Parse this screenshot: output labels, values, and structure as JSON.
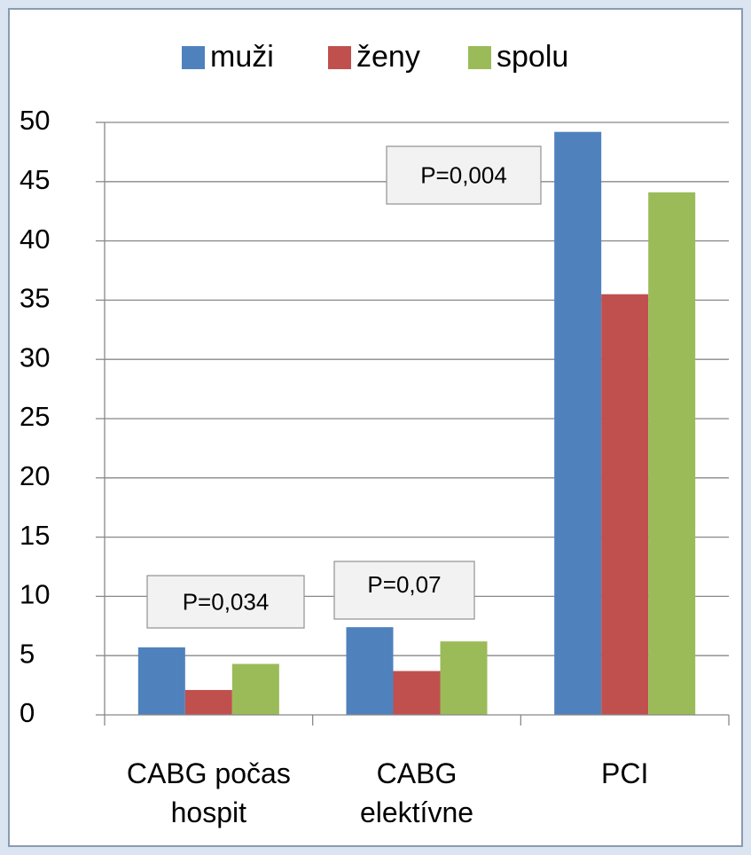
{
  "chart_data": {
    "type": "bar",
    "categories": [
      "CABG počas hospit",
      "CABG elektívne",
      "PCI"
    ],
    "series": [
      {
        "name": "muži",
        "color": "#4f81bd",
        "values": [
          5.7,
          7.4,
          49.2
        ]
      },
      {
        "name": "ženy",
        "color": "#c0504d",
        "values": [
          2.1,
          3.7,
          35.5
        ]
      },
      {
        "name": "spolu",
        "color": "#9bbb59",
        "values": [
          4.3,
          6.2,
          44.1
        ]
      }
    ],
    "ylim": [
      0,
      50
    ],
    "yticks": [
      0,
      5,
      10,
      15,
      20,
      25,
      30,
      35,
      40,
      45,
      50
    ],
    "grid": true,
    "legend": "top",
    "annotations": [
      "P=0,034",
      "P=0,07",
      "P=0,004"
    ]
  }
}
